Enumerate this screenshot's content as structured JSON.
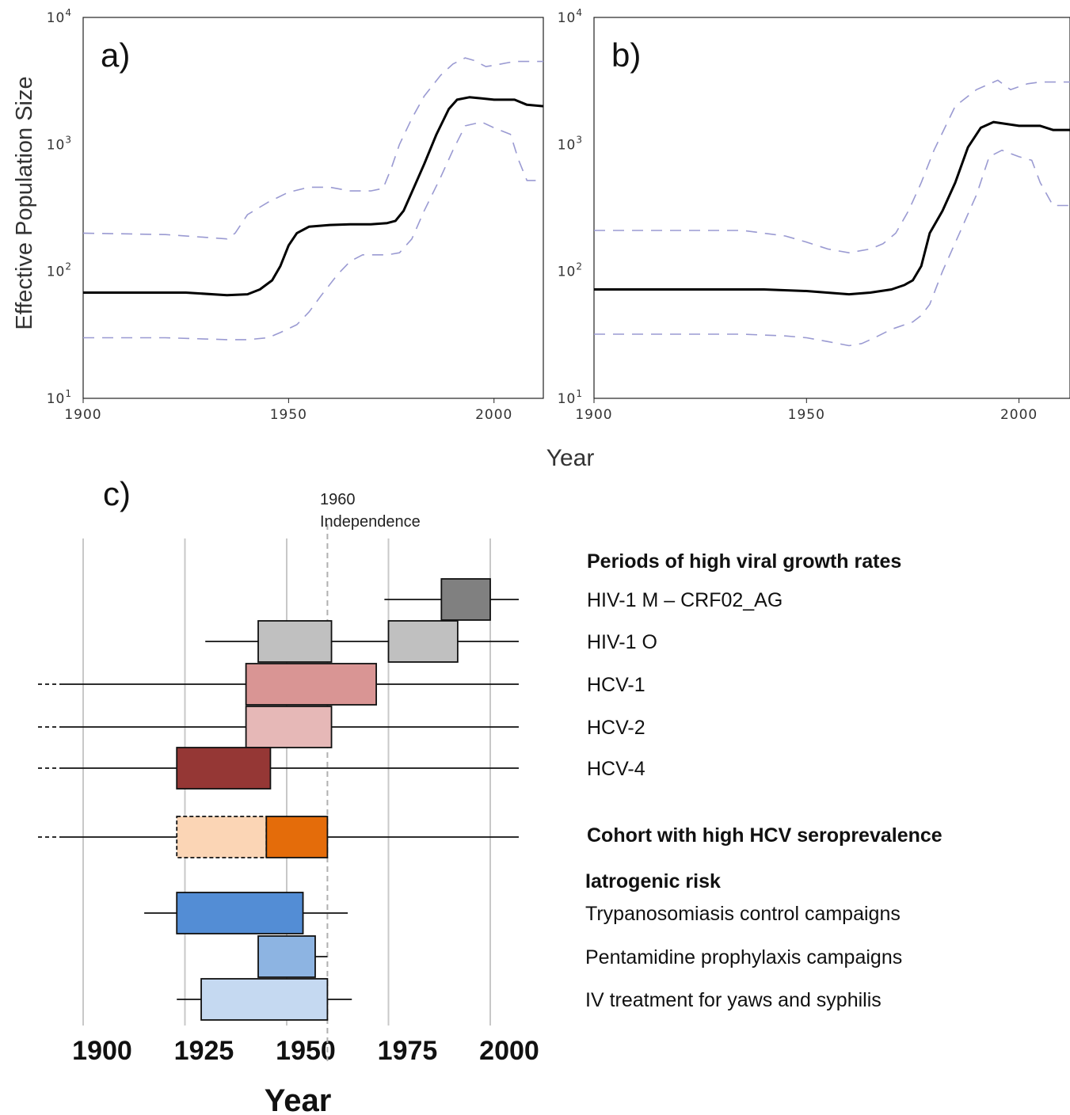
{
  "figure": {
    "shared_xlabel": "Year"
  },
  "chart_data": [
    {
      "type": "line",
      "panel_label": "a)",
      "ylabel": "Effective Population Size",
      "xlabel": "",
      "xlim": [
        1900,
        2012
      ],
      "ylim": [
        10,
        10000
      ],
      "yscale": "log",
      "x_ticks": [
        "1900",
        "1950",
        "2000"
      ],
      "y_ticks": [
        {
          "base": "10",
          "exp": "1"
        },
        {
          "base": "10",
          "exp": "2"
        },
        {
          "base": "10",
          "exp": "3"
        },
        {
          "base": "10",
          "exp": "4"
        }
      ],
      "grid": false,
      "colors": {
        "median": "#000000",
        "hpd": "#9a9ad2"
      },
      "series": [
        {
          "role": "median",
          "x": [
            1900,
            1925,
            1935,
            1940,
            1943,
            1946,
            1948,
            1950,
            1952,
            1955,
            1960,
            1965,
            1970,
            1974,
            1976,
            1978,
            1980,
            1983,
            1986,
            1989,
            1991,
            1994,
            1997,
            2000,
            2005,
            2008,
            2012
          ],
          "values": [
            68,
            68,
            65,
            66,
            72,
            85,
            110,
            160,
            200,
            225,
            232,
            235,
            235,
            240,
            250,
            300,
            420,
            700,
            1200,
            1900,
            2250,
            2350,
            2300,
            2250,
            2250,
            2050,
            2000
          ]
        },
        {
          "role": "upper",
          "x": [
            1900,
            1920,
            1930,
            1935,
            1937,
            1940,
            1945,
            1950,
            1955,
            1960,
            1965,
            1970,
            1973,
            1975,
            1977,
            1980,
            1983,
            1987,
            1990,
            1993,
            1995,
            1998,
            2000,
            2005,
            2012
          ],
          "values": [
            200,
            195,
            185,
            180,
            200,
            280,
            350,
            420,
            460,
            460,
            430,
            430,
            450,
            650,
            1000,
            1600,
            2400,
            3500,
            4300,
            4800,
            4600,
            4100,
            4200,
            4500,
            4500
          ]
        },
        {
          "role": "lower",
          "x": [
            1900,
            1920,
            1935,
            1940,
            1945,
            1948,
            1952,
            1955,
            1958,
            1962,
            1965,
            1968,
            1970,
            1974,
            1977,
            1980,
            1983,
            1987,
            1990,
            1993,
            1997,
            2000,
            2004,
            2006,
            2008,
            2012
          ],
          "values": [
            30,
            30,
            29,
            29,
            30,
            33,
            38,
            48,
            65,
            95,
            120,
            135,
            135,
            135,
            140,
            180,
            300,
            550,
            900,
            1400,
            1500,
            1350,
            1200,
            750,
            520,
            520
          ]
        }
      ]
    },
    {
      "type": "line",
      "panel_label": "b)",
      "ylabel": "",
      "xlabel": "",
      "xlim": [
        1900,
        2012
      ],
      "ylim": [
        10,
        10000
      ],
      "yscale": "log",
      "x_ticks": [
        "1900",
        "1950",
        "2000"
      ],
      "y_ticks": [
        {
          "base": "10",
          "exp": "1"
        },
        {
          "base": "10",
          "exp": "2"
        },
        {
          "base": "10",
          "exp": "3"
        },
        {
          "base": "10",
          "exp": "4"
        }
      ],
      "grid": false,
      "colors": {
        "median": "#000000",
        "hpd": "#9a9ad2"
      },
      "series": [
        {
          "role": "median",
          "x": [
            1900,
            1920,
            1940,
            1950,
            1960,
            1965,
            1970,
            1973,
            1975,
            1977,
            1979,
            1982,
            1985,
            1988,
            1991,
            1994,
            1997,
            2000,
            2005,
            2008,
            2012
          ],
          "values": [
            72,
            72,
            72,
            70,
            66,
            68,
            72,
            78,
            85,
            110,
            200,
            300,
            500,
            950,
            1350,
            1500,
            1450,
            1400,
            1400,
            1300,
            1300
          ]
        },
        {
          "role": "upper",
          "x": [
            1900,
            1920,
            1935,
            1945,
            1950,
            1955,
            1960,
            1965,
            1968,
            1971,
            1974,
            1977,
            1980,
            1985,
            1990,
            1995,
            1998,
            2002,
            2005,
            2012
          ],
          "values": [
            210,
            210,
            210,
            190,
            170,
            150,
            140,
            150,
            165,
            200,
            300,
            500,
            900,
            2000,
            2700,
            3200,
            2700,
            3000,
            3100,
            3100
          ]
        },
        {
          "role": "lower",
          "x": [
            1900,
            1920,
            1935,
            1945,
            1950,
            1955,
            1960,
            1963,
            1966,
            1970,
            1975,
            1977,
            1979,
            1982,
            1986,
            1990,
            1993,
            1996,
            2000,
            2003,
            2005,
            2008,
            2012
          ],
          "values": [
            32,
            32,
            32,
            31,
            30,
            28,
            26,
            27,
            30,
            35,
            40,
            45,
            55,
            100,
            200,
            400,
            800,
            900,
            800,
            750,
            500,
            330,
            330
          ]
        }
      ]
    },
    {
      "type": "timeline",
      "panel_label": "c)",
      "xlabel": "Year",
      "xlim": [
        1900,
        2007
      ],
      "x_ticks": [
        "1900",
        "1925",
        "1950",
        "1975",
        "2000"
      ],
      "grid": true,
      "reference_line": {
        "x": 1960,
        "year_label": "1960",
        "event_label": "Independence"
      },
      "legend_headings": {
        "growth": "Periods of high viral growth rates",
        "cohort": "Cohort with high HCV seroprevalence",
        "iatrogenic": "Iatrogenic risk"
      },
      "rows": [
        {
          "name": "HIV-1 M – CRF02_AG",
          "group": "growth",
          "whisker": [
            1974,
            2007
          ],
          "boxes": [
            {
              "from": 1988,
              "to": 2000,
              "color": "#808080"
            }
          ]
        },
        {
          "name": "HIV-1 O",
          "group": "growth",
          "whisker": [
            1930,
            2007
          ],
          "boxes": [
            {
              "from": 1943,
              "to": 1961,
              "color": "#c0c0c0"
            },
            {
              "from": 1975,
              "to": 1992,
              "color": "#c0c0c0"
            }
          ]
        },
        {
          "name": "HCV-1",
          "group": "growth",
          "whisker": [
            1889,
            2007
          ],
          "open_left": true,
          "boxes": [
            {
              "from": 1940,
              "to": 1972,
              "color": "#d99594"
            }
          ]
        },
        {
          "name": "HCV-2",
          "group": "growth",
          "whisker": [
            1889,
            2007
          ],
          "open_left": true,
          "boxes": [
            {
              "from": 1940,
              "to": 1961,
              "color": "#e6b8b7"
            }
          ]
        },
        {
          "name": "HCV-4",
          "group": "growth",
          "whisker": [
            1889,
            2007
          ],
          "open_left": true,
          "boxes": [
            {
              "from": 1923,
              "to": 1946,
              "color": "#953735"
            }
          ]
        },
        {
          "name": "",
          "group": "cohort",
          "whisker": [
            1889,
            2007
          ],
          "open_left": true,
          "boxes": [
            {
              "from": 1923,
              "to": 1945,
              "color": "#fbd5b5",
              "dashed": true
            },
            {
              "from": 1945,
              "to": 1960,
              "color": "#e46c0a"
            }
          ]
        },
        {
          "name": "Trypanosomiasis control campaigns",
          "group": "iatrogenic",
          "whisker": [
            1915,
            1965
          ],
          "boxes": [
            {
              "from": 1923,
              "to": 1954,
              "color": "#538dd5"
            }
          ]
        },
        {
          "name": "Pentamidine prophylaxis campaigns",
          "group": "iatrogenic",
          "whisker": [
            1943,
            1960
          ],
          "boxes": [
            {
              "from": 1943,
              "to": 1957,
              "color": "#8db4e2"
            }
          ]
        },
        {
          "name": "IV treatment for yaws and syphilis",
          "group": "iatrogenic",
          "whisker": [
            1923,
            1966
          ],
          "boxes": [
            {
              "from": 1929,
              "to": 1960,
              "color": "#c5d9f1"
            }
          ]
        }
      ]
    }
  ]
}
